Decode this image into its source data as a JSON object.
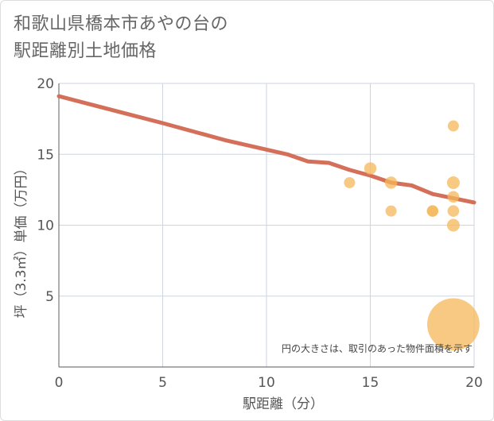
{
  "chart_data": {
    "type": "scatter",
    "title_lines": [
      "和歌山県橋本市あやの台の",
      "駅距離別土地価格"
    ],
    "xlabel": "駅距離（分）",
    "ylabel": "坪（3.3㎡）単価（万円）",
    "xlim": [
      0,
      20
    ],
    "ylim": [
      0,
      20
    ],
    "x_ticks": [
      0,
      5,
      10,
      15,
      20
    ],
    "y_ticks": [
      5,
      10,
      15,
      20
    ],
    "grid": true,
    "note": "円の大きさは、取引のあった物件面積を示す",
    "colors": {
      "bubble": "#f5b75a",
      "trend": "#d4705a",
      "grid": "#cdd6e0",
      "axis": "#7a7a7a"
    },
    "points": [
      {
        "x": 14,
        "y": 13,
        "size": 1
      },
      {
        "x": 15,
        "y": 14,
        "size": 1.2
      },
      {
        "x": 16,
        "y": 13,
        "size": 1.2
      },
      {
        "x": 16,
        "y": 11,
        "size": 1
      },
      {
        "x": 18,
        "y": 11,
        "size": 1.1
      },
      {
        "x": 18,
        "y": 11,
        "size": 1
      },
      {
        "x": 19,
        "y": 17,
        "size": 1
      },
      {
        "x": 19,
        "y": 13,
        "size": 1.3
      },
      {
        "x": 19,
        "y": 12,
        "size": 1.1
      },
      {
        "x": 19,
        "y": 11,
        "size": 1.1
      },
      {
        "x": 19,
        "y": 10,
        "size": 1.3
      },
      {
        "x": 19,
        "y": 3,
        "size": 5
      }
    ],
    "trend_line": [
      {
        "x": 0,
        "y": 19.1
      },
      {
        "x": 5,
        "y": 17.2
      },
      {
        "x": 8,
        "y": 16
      },
      {
        "x": 11,
        "y": 15
      },
      {
        "x": 12,
        "y": 14.5
      },
      {
        "x": 13,
        "y": 14.4
      },
      {
        "x": 14,
        "y": 13.9
      },
      {
        "x": 15,
        "y": 13.5
      },
      {
        "x": 16,
        "y": 13
      },
      {
        "x": 17,
        "y": 12.8
      },
      {
        "x": 18,
        "y": 12.2
      },
      {
        "x": 19,
        "y": 11.9
      },
      {
        "x": 20,
        "y": 11.6
      }
    ]
  }
}
